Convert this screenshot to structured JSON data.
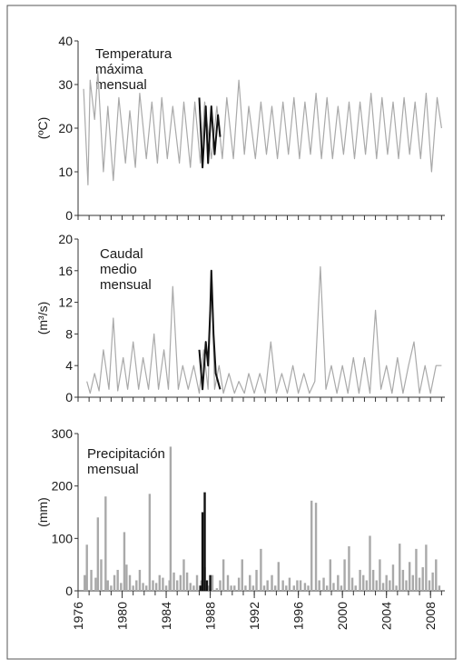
{
  "style": {
    "background": "#ffffff",
    "frame_color": "#555555",
    "axis_color": "#333333",
    "series_color": "#a9a9a9",
    "highlight_color": "#111111"
  },
  "chart_data": [
    {
      "type": "line",
      "title_lines": [
        "Temperatura",
        "máxima",
        "mensual"
      ],
      "ylabel": "(ºC)",
      "xlim": [
        1976,
        2009.3
      ],
      "ylim": [
        0,
        40
      ],
      "y_ticks": [
        0,
        10,
        20,
        30,
        40
      ],
      "series": [
        {
          "x": [
            1976.5,
            1976.9,
            1977.1,
            1977.5,
            1977.8,
            1978.3,
            1978.7,
            1979.2,
            1979.7,
            1980.3,
            1980.7,
            1981.2,
            1981.6,
            1982.2,
            1982.7,
            1983.2,
            1983.6,
            1984.1,
            1984.6,
            1985.2,
            1985.6,
            1986.2,
            1986.6,
            1987.1,
            1987.5,
            1988.1,
            1988.6,
            1989.1,
            1989.5,
            1990.1,
            1990.6,
            1991.1,
            1991.5,
            1992.1,
            1992.6,
            1993.1,
            1993.6,
            1994.1,
            1994.6,
            1995.1,
            1995.6,
            1996.1,
            1996.6,
            1997.1,
            1997.6,
            1998.1,
            1998.6,
            1999.1,
            1999.6,
            2000.1,
            2000.6,
            2001.1,
            2001.6,
            2002.1,
            2002.6,
            2003.1,
            2003.6,
            2004.1,
            2004.6,
            2005.1,
            2005.6,
            2006.1,
            2006.6,
            2007.1,
            2007.6,
            2008.1,
            2008.6,
            2009.0
          ],
          "y": [
            29,
            7,
            31,
            22,
            33,
            10,
            25,
            8,
            27,
            12,
            24,
            11,
            28,
            13,
            26,
            12,
            27,
            13,
            25,
            12,
            26,
            11,
            26,
            12,
            26,
            13,
            25,
            13,
            27,
            13,
            31,
            14,
            25,
            13,
            26,
            14,
            25,
            13,
            26,
            14,
            27,
            13,
            26,
            14,
            28,
            13,
            27,
            13,
            25,
            14,
            26,
            13,
            26,
            14,
            28,
            13,
            27,
            14,
            26,
            13,
            27,
            14,
            26,
            13,
            28,
            10,
            27,
            20
          ]
        },
        {
          "name": "",
          "x": [
            1987.0,
            1987.3,
            1987.6,
            1987.8,
            1988.1,
            1988.4,
            1988.7,
            1988.9
          ],
          "y": [
            27,
            11,
            25,
            12,
            25,
            14,
            23,
            18
          ]
        }
      ]
    },
    {
      "type": "line",
      "title_lines": [
        "Caudal",
        "medio",
        "mensual"
      ],
      "ylabel": "(m³/s)",
      "xlim": [
        1976,
        2009.3
      ],
      "ylim": [
        0,
        20
      ],
      "y_ticks": [
        0,
        4,
        8,
        12,
        16,
        20
      ],
      "series": [
        {
          "x": [
            1976.8,
            1977.1,
            1977.5,
            1977.9,
            1978.3,
            1978.8,
            1979.2,
            1979.6,
            1980.1,
            1980.5,
            1981.0,
            1981.5,
            1981.9,
            1982.4,
            1982.9,
            1983.3,
            1983.8,
            1984.2,
            1984.6,
            1985.1,
            1985.5,
            1986.0,
            1986.5,
            1987.0,
            1987.4,
            1987.8,
            1988.1,
            1988.4,
            1988.8,
            1989.2,
            1989.7,
            1990.2,
            1990.6,
            1991.1,
            1991.5,
            1992.0,
            1992.5,
            1993.0,
            1993.5,
            1994.0,
            1994.5,
            1995.0,
            1995.5,
            1996.0,
            1996.5,
            1997.0,
            1997.5,
            1998.0,
            1998.5,
            1999.0,
            1999.5,
            2000.0,
            2000.5,
            2001.0,
            2001.5,
            2002.0,
            2002.5,
            2003.0,
            2003.5,
            2004.0,
            2004.5,
            2005.0,
            2005.5,
            2006.0,
            2006.5,
            2007.0,
            2007.5,
            2008.0,
            2008.5,
            2009.0
          ],
          "y": [
            2,
            0.5,
            3,
            0.8,
            6,
            1,
            10,
            0.8,
            5,
            1,
            7,
            1,
            5,
            1,
            8,
            1,
            6,
            1,
            14,
            1,
            4,
            1,
            4,
            0.5,
            6,
            1,
            16,
            1,
            4,
            0.5,
            3,
            0.5,
            2,
            0.5,
            3,
            0.5,
            3,
            0.5,
            7,
            0.5,
            3,
            0.5,
            4,
            0.5,
            3,
            0.5,
            2,
            16.5,
            1,
            4,
            0.5,
            4,
            0.5,
            5,
            0.5,
            5,
            0.5,
            11,
            1,
            4,
            0.5,
            5,
            0.5,
            4,
            7,
            0.5,
            4,
            0.5,
            4,
            4
          ]
        },
        {
          "name": "",
          "x": [
            1987.0,
            1987.3,
            1987.6,
            1987.8,
            1988.0,
            1988.1,
            1988.3,
            1988.5,
            1988.7,
            1988.9
          ],
          "y": [
            6,
            1,
            7,
            4,
            11,
            16,
            8,
            3,
            2,
            1
          ]
        }
      ]
    },
    {
      "type": "bar",
      "title_lines": [
        "Precipitación",
        "mensual"
      ],
      "ylabel": "(mm)",
      "xlim": [
        1976,
        2009.3
      ],
      "ylim": [
        0,
        300
      ],
      "y_ticks": [
        0,
        100,
        200,
        300
      ],
      "x_ticks": [
        "1976",
        "1980",
        "1984",
        "1988",
        "1992",
        "1996",
        "2000",
        "2004",
        "2008"
      ],
      "x_tick_values": [
        1976,
        1980,
        1984,
        1988,
        1992,
        1996,
        2000,
        2004,
        2008
      ],
      "series": [
        {
          "x": [
            1976.6,
            1976.8,
            1977.2,
            1977.6,
            1977.8,
            1978.1,
            1978.5,
            1978.7,
            1979.0,
            1979.3,
            1979.6,
            1979.9,
            1980.2,
            1980.4,
            1980.7,
            1981.0,
            1981.3,
            1981.6,
            1981.9,
            1982.2,
            1982.5,
            1982.8,
            1983.1,
            1983.4,
            1983.7,
            1984.0,
            1984.3,
            1984.4,
            1984.7,
            1985.0,
            1985.3,
            1985.6,
            1985.9,
            1986.2,
            1986.5,
            1986.8,
            1987.2,
            1987.5,
            1987.8,
            1988.2,
            1988.6,
            1988.9,
            1989.2,
            1989.6,
            1989.9,
            1990.2,
            1990.6,
            1990.9,
            1991.2,
            1991.6,
            1991.9,
            1992.2,
            1992.6,
            1992.9,
            1993.2,
            1993.6,
            1993.9,
            1994.2,
            1994.6,
            1994.9,
            1995.2,
            1995.6,
            1995.9,
            1996.2,
            1996.6,
            1996.9,
            1997.2,
            1997.6,
            1997.9,
            1998.3,
            1998.6,
            1998.9,
            1999.2,
            1999.6,
            1999.9,
            2000.2,
            2000.6,
            2000.9,
            2001.2,
            2001.6,
            2001.9,
            2002.2,
            2002.5,
            2002.8,
            2003.1,
            2003.4,
            2003.7,
            2004.0,
            2004.3,
            2004.6,
            2004.9,
            2005.2,
            2005.5,
            2005.8,
            2006.1,
            2006.4,
            2006.7,
            2007.0,
            2007.3,
            2007.6,
            2007.9,
            2008.2,
            2008.5,
            2008.8
          ],
          "y": [
            30,
            88,
            40,
            25,
            140,
            60,
            180,
            20,
            10,
            30,
            40,
            15,
            112,
            50,
            30,
            10,
            20,
            40,
            15,
            10,
            185,
            20,
            15,
            30,
            25,
            10,
            20,
            275,
            35,
            20,
            30,
            60,
            35,
            15,
            10,
            30,
            20,
            45,
            10,
            30,
            5,
            20,
            60,
            30,
            10,
            10,
            25,
            60,
            10,
            30,
            10,
            40,
            80,
            10,
            20,
            30,
            10,
            55,
            20,
            10,
            25,
            10,
            20,
            20,
            15,
            10,
            172,
            168,
            20,
            25,
            10,
            60,
            15,
            30,
            10,
            60,
            85,
            25,
            10,
            40,
            30,
            20,
            105,
            40,
            20,
            60,
            15,
            30,
            20,
            50,
            10,
            90,
            40,
            20,
            55,
            30,
            80,
            25,
            45,
            88,
            20,
            35,
            60,
            10
          ]
        },
        {
          "name": "",
          "x": [
            1987.1,
            1987.3,
            1987.5,
            1987.7,
            1988.0
          ],
          "y": [
            10,
            150,
            188,
            20,
            30
          ]
        }
      ]
    }
  ]
}
